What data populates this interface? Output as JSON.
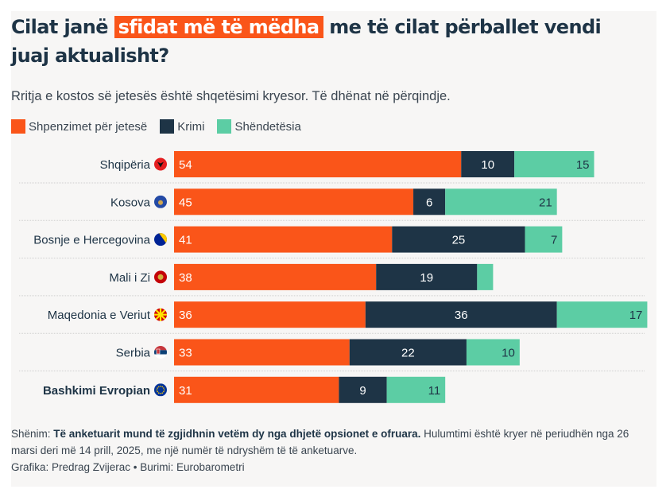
{
  "title": {
    "before": "Cilat janë ",
    "highlight": "sfidat më të mëdha",
    "after": " me të cilat përballet vendi juaj aktualisht?"
  },
  "subtitle": "Rritja e kostos së jetesës është shqetësimi kryesor. Të dhënat në përqindje.",
  "colors": {
    "cost": "#fa5519",
    "crime": "#1e3446",
    "health": "#5ccda4",
    "highlight": "#fa5519"
  },
  "chart_data": {
    "type": "bar",
    "orientation": "horizontal",
    "stacked": true,
    "title": "Cilat janë sfidat më të mëdha me të cilat përballet vendi juaj aktualisht?",
    "subtitle": "Rritja e kostos së jetesës është shqetësimi kryesor. Të dhënat në përqindje.",
    "xlabel": "",
    "ylabel": "",
    "xlim": [
      0,
      100
    ],
    "grid": false,
    "legend": "top-left",
    "categories": [
      {
        "name": "Shqipëria",
        "flag": "albania-flag-icon",
        "bold": false
      },
      {
        "name": "Kosova",
        "flag": "kosovo-flag-icon",
        "bold": false
      },
      {
        "name": "Bosnje e Hercegovina",
        "flag": "bosnia-flag-icon",
        "bold": false
      },
      {
        "name": "Mali i Zi",
        "flag": "montenegro-flag-icon",
        "bold": false
      },
      {
        "name": "Maqedonia e Veriut",
        "flag": "north-macedonia-flag-icon",
        "bold": false
      },
      {
        "name": "Serbia",
        "flag": "serbia-flag-icon",
        "bold": false
      },
      {
        "name": "Bashkimi Evropian",
        "flag": "eu-flag-icon",
        "bold": true
      }
    ],
    "series": [
      {
        "key": "cost",
        "name": "Shpenzimet për jetesë",
        "values": [
          54,
          45,
          41,
          38,
          36,
          33,
          31
        ],
        "labels": [
          "54",
          "45",
          "41",
          "38",
          "36",
          "33",
          "31"
        ]
      },
      {
        "key": "crime",
        "name": "Krimi",
        "values": [
          10,
          6,
          25,
          19,
          36,
          22,
          9
        ],
        "labels": [
          "10",
          "6",
          "25",
          "19",
          "36",
          "22",
          "9"
        ]
      },
      {
        "key": "health",
        "name": "Shëndetësia",
        "values": [
          15,
          21,
          7,
          3,
          17,
          10,
          11
        ],
        "labels": [
          "15",
          "21",
          "7",
          "",
          "17",
          "10",
          "11"
        ]
      }
    ]
  },
  "footer": {
    "note_label": "Shënim: ",
    "note_bold": "Të anketuarit mund të zgjidhnin vetëm dy nga dhjetë opsionet e ofruara.",
    "note_rest": " Hulumtimi është kryer në periudhën nga 26 marsi deri më 14 prill, 2025, me një numër të ndryshëm të të anketuarve.",
    "credit": "Grafika: Predrag Zvijerac • Burimi: Eurobarometri"
  }
}
